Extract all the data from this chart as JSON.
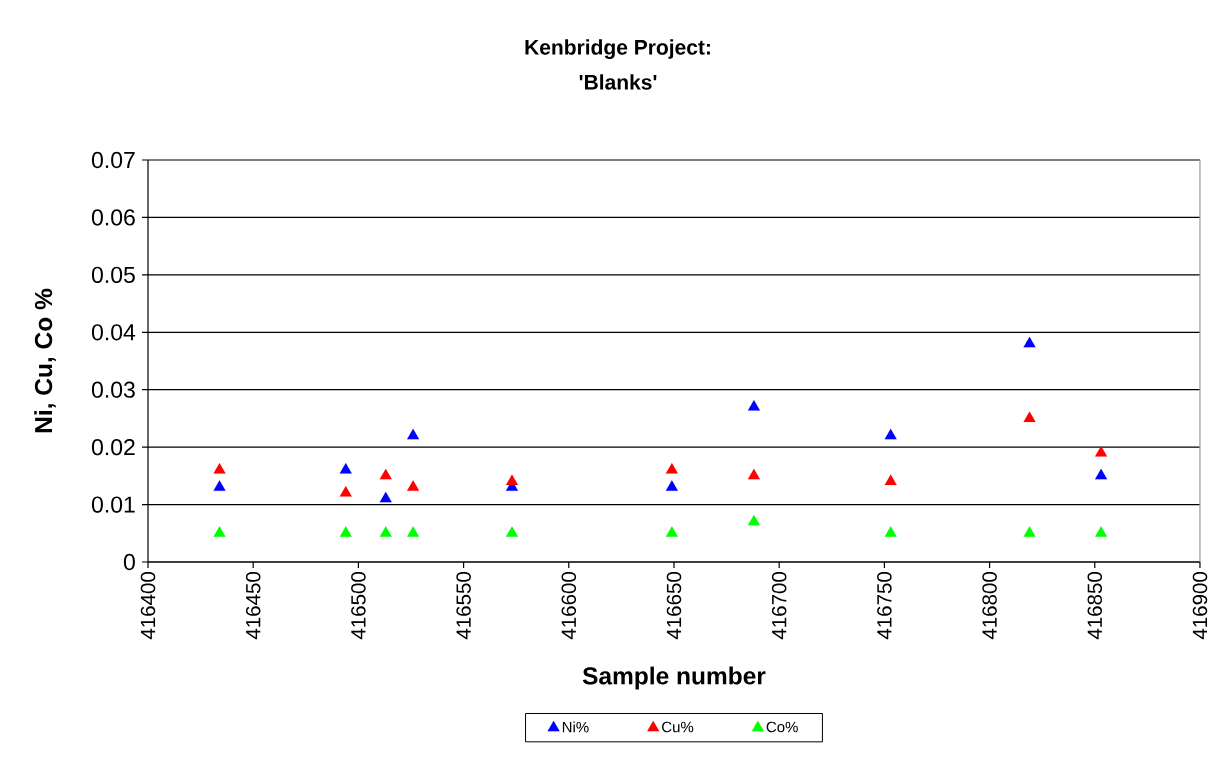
{
  "chart_data": {
    "type": "scatter",
    "title": "Kenbridge Project:",
    "subtitle": "'Blanks'",
    "xlabel": "Sample number",
    "ylabel": "Ni, Cu, Co %",
    "x": [
      416434,
      416494,
      416513,
      416526,
      416573,
      416649,
      416688,
      416753,
      416819,
      416853
    ],
    "series": [
      {
        "name": "Ni%",
        "color": "#0000ff",
        "values": [
          0.013,
          0.016,
          0.011,
          0.022,
          0.013,
          0.013,
          0.027,
          0.022,
          0.038,
          0.015
        ]
      },
      {
        "name": "Cu%",
        "color": "#ff0000",
        "values": [
          0.016,
          0.012,
          0.015,
          0.013,
          0.014,
          0.016,
          0.015,
          0.014,
          0.025,
          0.019
        ]
      },
      {
        "name": "Co%",
        "color": "#00ff00",
        "values": [
          0.005,
          0.005,
          0.005,
          0.005,
          0.005,
          0.005,
          0.007,
          0.005,
          0.005,
          0.005
        ]
      }
    ],
    "xlim": [
      416400,
      416900
    ],
    "xticks": [
      416400,
      416450,
      416500,
      416550,
      416600,
      416650,
      416700,
      416750,
      416800,
      416850,
      416900
    ],
    "ylim": [
      0,
      0.07
    ],
    "yticks": [
      0,
      0.01,
      0.02,
      0.03,
      0.04,
      0.05,
      0.06,
      0.07
    ],
    "grid": "y",
    "legend": "bottom",
    "marker": "triangle"
  }
}
